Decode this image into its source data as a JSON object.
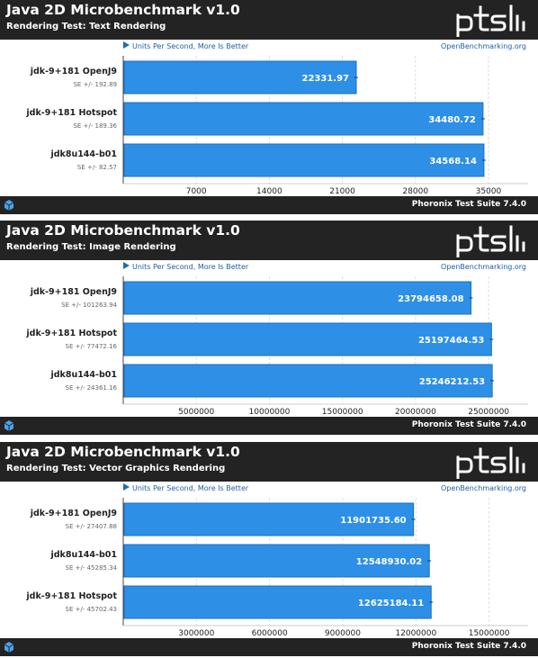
{
  "colors": {
    "bar": "#2d8fe6",
    "bar_edge": "#1b6fbf",
    "header_bg": "#232323",
    "grid": "#dddddd",
    "accent": "#1f6bb5"
  },
  "chart_data": [
    {
      "type": "bar",
      "title": "Java 2D Microbenchmark v1.0",
      "subtitle": "Rendering Test: Text Rendering",
      "legend": "Units Per Second, More Is Better",
      "site": "OpenBenchmarking.org",
      "footer": "Phoronix Test Suite 7.4.0",
      "categories": [
        "jdk-9+181 OpenJ9",
        "jdk-9+181 Hotspot",
        "jdk8u144-b01"
      ],
      "values": [
        22331.97,
        34480.72,
        34568.14
      ],
      "value_labels": [
        "22331.97",
        "34480.72",
        "34568.14"
      ],
      "errors": [
        "SE +/- 192.89",
        "SE +/- 189.36",
        "SE +/- 82.57"
      ],
      "ticks": [
        7000,
        14000,
        21000,
        28000,
        35000
      ],
      "tick_labels": [
        "7000",
        "14000",
        "21000",
        "28000",
        "35000"
      ],
      "xlim": [
        0,
        38800
      ]
    },
    {
      "type": "bar",
      "title": "Java 2D Microbenchmark v1.0",
      "subtitle": "Rendering Test: Image Rendering",
      "legend": "Units Per Second, More Is Better",
      "site": "OpenBenchmarking.org",
      "footer": "Phoronix Test Suite 7.4.0",
      "categories": [
        "jdk-9+181 OpenJ9",
        "jdk-9+181 Hotspot",
        "jdk8u144-b01"
      ],
      "values": [
        23794658.08,
        25197464.53,
        25246212.53
      ],
      "value_labels": [
        "23794658.08",
        "25197464.53",
        "25246212.53"
      ],
      "errors": [
        "SE +/- 101263.94",
        "SE +/- 77472.16",
        "SE +/- 24361.16"
      ],
      "ticks": [
        5000000,
        10000000,
        15000000,
        20000000,
        25000000
      ],
      "tick_labels": [
        "5000000",
        "10000000",
        "15000000",
        "20000000",
        "25000000"
      ],
      "xlim": [
        0,
        27700000
      ]
    },
    {
      "type": "bar",
      "title": "Java 2D Microbenchmark v1.0",
      "subtitle": "Rendering Test: Vector Graphics Rendering",
      "legend": "Units Per Second, More Is Better",
      "site": "OpenBenchmarking.org",
      "footer": "Phoronix Test Suite 7.4.0",
      "categories": [
        "jdk-9+181 OpenJ9",
        "jdk8u144-b01",
        "jdk-9+181 Hotspot"
      ],
      "values": [
        11901735.6,
        12548930.02,
        12625184.11
      ],
      "value_labels": [
        "11901735.60",
        "12548930.02",
        "12625184.11"
      ],
      "errors": [
        "SE +/- 27407.88",
        "SE +/- 45285.34",
        "SE +/- 45702.43"
      ],
      "ticks": [
        3000000,
        6000000,
        9000000,
        12000000,
        15000000
      ],
      "tick_labels": [
        "3000000",
        "6000000",
        "9000000",
        "12000000",
        "15000000"
      ],
      "xlim": [
        0,
        16600000
      ]
    }
  ]
}
